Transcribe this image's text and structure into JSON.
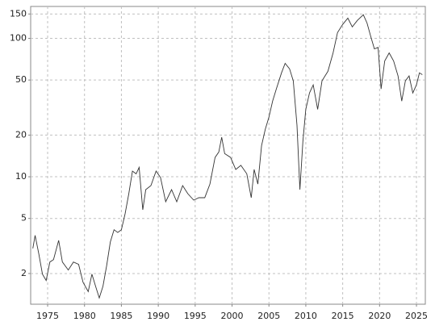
{
  "chart_data": {
    "type": "line",
    "x": [
      1973.0,
      1973.3,
      1973.8,
      1974.3,
      1974.8,
      1975.3,
      1975.8,
      1976.5,
      1977.0,
      1977.8,
      1978.5,
      1979.2,
      1979.8,
      1980.5,
      1981.0,
      1981.5,
      1982.0,
      1982.5,
      1983.0,
      1983.5,
      1984.0,
      1984.5,
      1985.0,
      1985.5,
      1986.0,
      1986.5,
      1987.0,
      1987.4,
      1987.9,
      1988.3,
      1989.0,
      1989.7,
      1990.3,
      1991.0,
      1991.8,
      1992.5,
      1993.3,
      1994.0,
      1994.8,
      1995.5,
      1996.3,
      1997.0,
      1997.7,
      1998.2,
      1998.6,
      1999.0,
      1999.8,
      2000.5,
      2001.2,
      2002.0,
      2002.6,
      2003.0,
      2003.5,
      2004.0,
      2004.5,
      2005.0,
      2005.5,
      2006.0,
      2006.7,
      2007.2,
      2007.8,
      2008.3,
      2008.8,
      2009.2,
      2009.6,
      2010.0,
      2010.5,
      2011.0,
      2011.6,
      2012.2,
      2013.0,
      2013.7,
      2014.3,
      2015.0,
      2015.7,
      2016.3,
      2017.0,
      2017.8,
      2018.3,
      2018.8,
      2019.3,
      2019.8,
      2020.2,
      2020.7,
      2021.3,
      2021.9,
      2022.5,
      2023.0,
      2023.5,
      2024.0,
      2024.5,
      2025.0,
      2025.4,
      2025.8
    ],
    "values": [
      3.04,
      3.77,
      2.77,
      1.98,
      1.78,
      2.42,
      2.52,
      3.47,
      2.42,
      2.12,
      2.42,
      2.33,
      1.73,
      1.48,
      1.98,
      1.62,
      1.33,
      1.62,
      2.27,
      3.38,
      4.14,
      3.96,
      4.14,
      5.4,
      7.55,
      11.0,
      10.5,
      11.7,
      5.77,
      8.07,
      8.63,
      11.0,
      9.87,
      6.6,
      8.07,
      6.6,
      8.63,
      7.55,
      6.78,
      7.06,
      7.06,
      8.86,
      13.8,
      15.1,
      19.3,
      14.7,
      13.8,
      11.3,
      12.1,
      10.5,
      7.06,
      11.3,
      8.86,
      16.8,
      22.0,
      26.9,
      35.2,
      43.1,
      56.3,
      66.0,
      60.2,
      49.3,
      23.5,
      8.07,
      18.0,
      30.7,
      40.3,
      46.1,
      30.7,
      49.3,
      57.8,
      78.5,
      110,
      126,
      140,
      121,
      135,
      148,
      129,
      103,
      84,
      86,
      43.1,
      68.7,
      78.5,
      68.7,
      53.5,
      35.2,
      49.3,
      53.5,
      40.3,
      46.1,
      56.3,
      54.7
    ],
    "color": "#333333",
    "xlim": [
      1972.7,
      2026.2
    ],
    "xticks": [
      1975,
      1980,
      1985,
      1990,
      1995,
      2000,
      2005,
      2010,
      2015,
      2020,
      2025
    ],
    "ylim": [
      1.2,
      170
    ],
    "yticks": [
      2,
      5,
      10,
      20,
      50,
      100,
      150
    ],
    "log_y": true,
    "grid": true
  }
}
